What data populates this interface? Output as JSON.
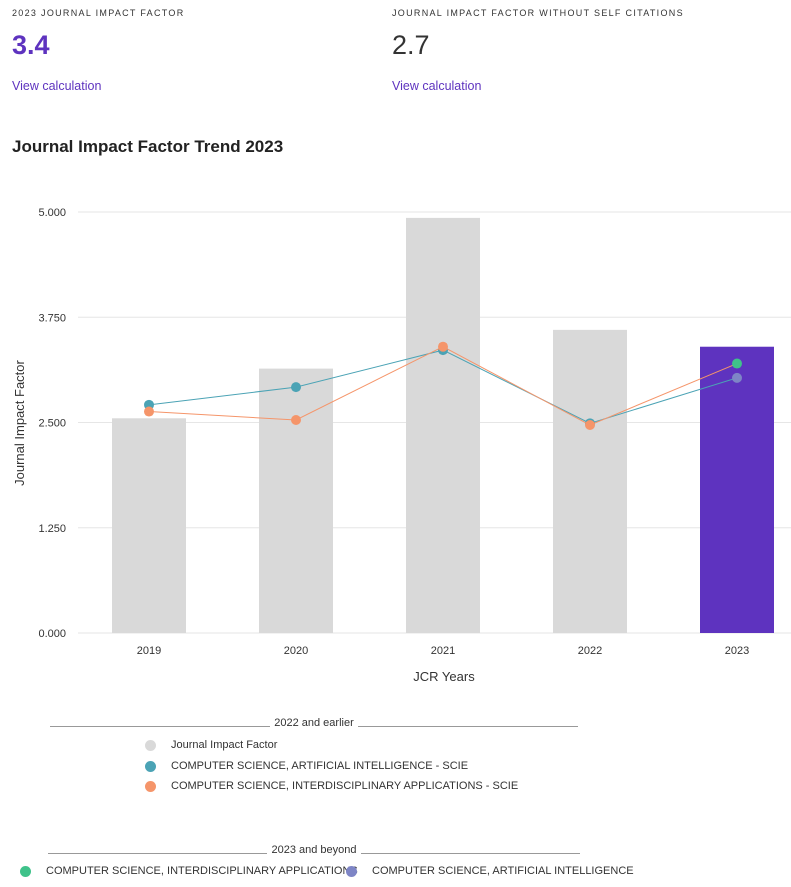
{
  "metrics": [
    {
      "label": "2023 JOURNAL IMPACT FACTOR",
      "value": "3.4",
      "link": "View calculation"
    },
    {
      "label": "JOURNAL IMPACT FACTOR WITHOUT SELF CITATIONS",
      "value": "2.7",
      "link": "View calculation"
    }
  ],
  "chart_title": "Journal Impact Factor Trend 2023",
  "chart_data": {
    "type": "bar",
    "categories": [
      "2019",
      "2020",
      "2021",
      "2022",
      "2023"
    ],
    "ylabel": "Journal Impact Factor",
    "xlabel": "JCR Years",
    "ylim": [
      0,
      5
    ],
    "yticks": [
      "0.000",
      "1.250",
      "2.500",
      "3.750",
      "5.000"
    ],
    "grid": true,
    "bars": {
      "name": "Journal Impact Factor",
      "values": [
        2.55,
        3.14,
        4.93,
        3.6,
        3.4
      ],
      "colors": [
        "#d9d9d9",
        "#d9d9d9",
        "#d9d9d9",
        "#d9d9d9",
        "#5e33bf"
      ]
    },
    "series": [
      {
        "name": "COMPUTER SCIENCE, ARTIFICIAL INTELLIGENCE - SCIE",
        "color": "#4ba3b5",
        "values": [
          2.71,
          2.92,
          3.36,
          2.49,
          3.03
        ]
      },
      {
        "name": "COMPUTER SCIENCE, INTERDISCIPLINARY APPLICATIONS - SCIE",
        "color": "#f5956a",
        "values": [
          2.63,
          2.53,
          3.4,
          2.47,
          3.2
        ]
      }
    ],
    "points_2023": [
      {
        "name": "COMPUTER SCIENCE, INTERDISCIPLINARY APPLICATIONS",
        "color": "#3fc28a",
        "value": 3.2
      },
      {
        "name": "COMPUTER SCIENCE, ARTIFICIAL INTELLIGENCE",
        "color": "#7e85c6",
        "value": 3.03
      }
    ]
  },
  "legend": {
    "earlier_heading": "2022 and earlier",
    "earlier_items": [
      {
        "label": "Journal Impact Factor",
        "color": "#d9d9d9"
      },
      {
        "label": "COMPUTER SCIENCE, ARTIFICIAL INTELLIGENCE - SCIE",
        "color": "#4ba3b5"
      },
      {
        "label": "COMPUTER SCIENCE, INTERDISCIPLINARY APPLICATIONS - SCIE",
        "color": "#f5956a"
      }
    ],
    "beyond_heading": "2023 and beyond",
    "beyond_items": [
      {
        "label": "COMPUTER SCIENCE, INTERDISCIPLINARY APPLICATIONS",
        "color": "#3fc28a"
      },
      {
        "label": "COMPUTER SCIENCE, ARTIFICIAL INTELLIGENCE",
        "color": "#7e85c6"
      }
    ]
  }
}
